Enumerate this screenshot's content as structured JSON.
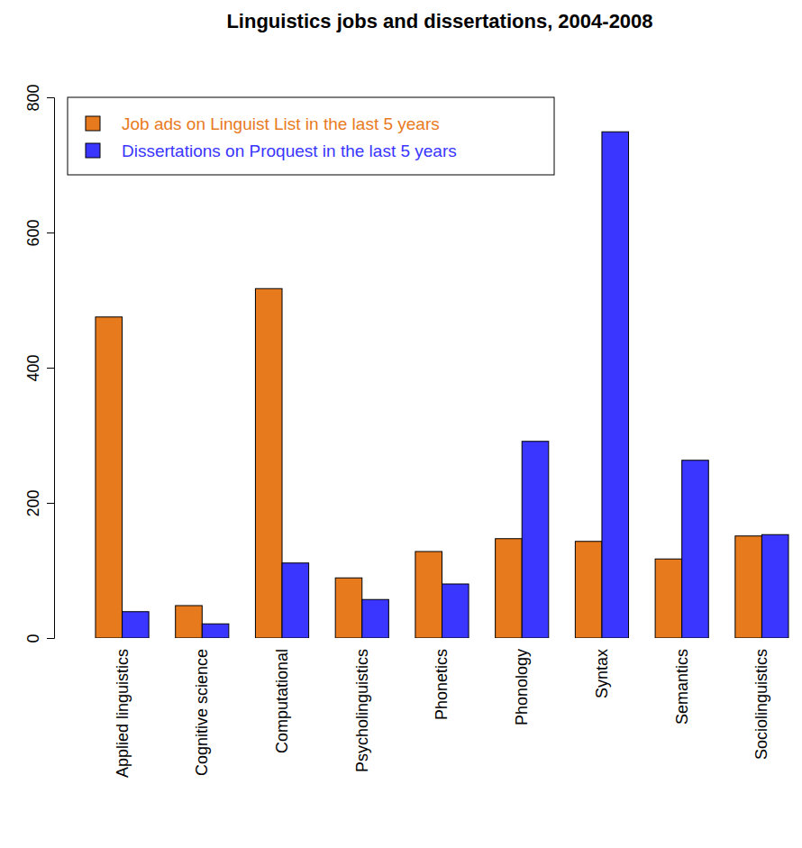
{
  "chart_data": {
    "type": "bar",
    "title": "Linguistics jobs and dissertations, 2004-2008",
    "categories": [
      "Applied linguistics",
      "Cognitive science",
      "Computational",
      "Psycholinguistics",
      "Phonetics",
      "Phonology",
      "Syntax",
      "Semantics",
      "Sociolinguistics"
    ],
    "series": [
      {
        "name": "Job ads on Linguist List in the last 5 years",
        "color": "#e87a1e",
        "values": [
          475,
          48,
          517,
          89,
          128,
          147,
          143,
          117,
          151
        ]
      },
      {
        "name": "Dissertations on Proquest in the last 5 years",
        "color": "#3a35ff",
        "values": [
          39,
          21,
          111,
          57,
          80,
          291,
          749,
          263,
          153
        ]
      }
    ],
    "ylim": [
      0,
      800
    ],
    "yticks": [
      0,
      200,
      400,
      600,
      800
    ],
    "grid": false,
    "legend": "top-left"
  }
}
